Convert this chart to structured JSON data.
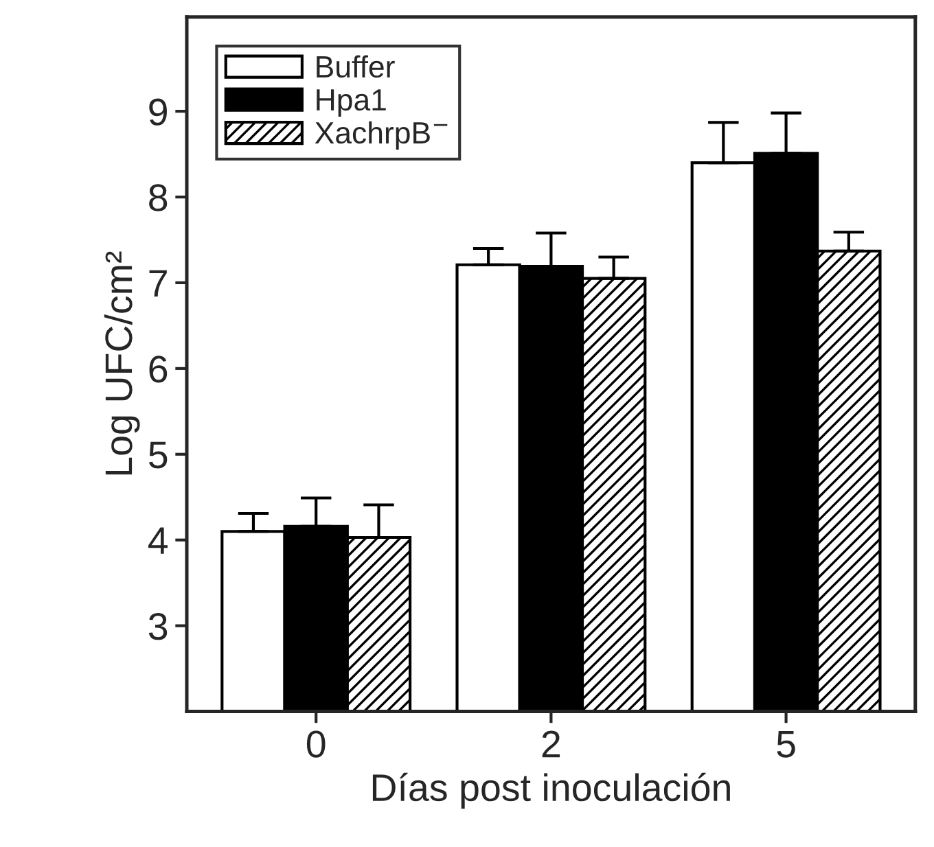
{
  "chart_data": {
    "type": "bar",
    "xlabel": "Días post inoculación",
    "ylabel": "Log UFC/cm²",
    "categories": [
      "0",
      "2",
      "5"
    ],
    "series": [
      {
        "name": "Buffer",
        "color": "#ffffff",
        "values": [
          4.1,
          7.21,
          8.4
        ],
        "errors": [
          [
            4.1,
            4.31
          ],
          [
            7.21,
            7.4
          ],
          [
            8.4,
            8.87
          ]
        ]
      },
      {
        "name": "Hpa1",
        "color": "#000000",
        "values": [
          4.16,
          7.19,
          8.51
        ],
        "errors": [
          [
            4.16,
            4.49
          ],
          [
            7.19,
            7.58
          ],
          [
            8.51,
            8.98
          ]
        ]
      },
      {
        "name": "XachrpB$^{−}$",
        "color": "#000000",
        "values": [
          4.03,
          7.05,
          7.37
        ],
        "errors": [
          [
            4.03,
            4.41
          ],
          [
            7.05,
            7.3
          ],
          [
            7.37,
            7.59
          ]
        ]
      }
    ],
    "ylim": [
      2,
      10.1
    ],
    "yticks": [
      3,
      4,
      5,
      6,
      7,
      8,
      9
    ],
    "grid": false,
    "legend": "top left"
  }
}
